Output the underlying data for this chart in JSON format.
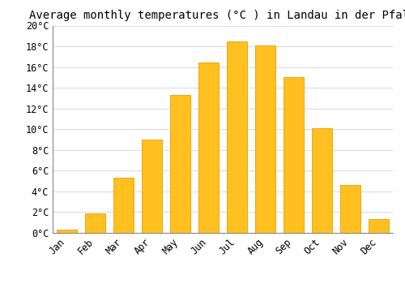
{
  "title": "Average monthly temperatures (°C ) in Landau in der Pfalz",
  "months": [
    "Jan",
    "Feb",
    "Mar",
    "Apr",
    "May",
    "Jun",
    "Jul",
    "Aug",
    "Sep",
    "Oct",
    "Nov",
    "Dec"
  ],
  "temperatures": [
    0.3,
    1.9,
    5.3,
    9.0,
    13.3,
    16.4,
    18.5,
    18.1,
    15.0,
    10.1,
    4.6,
    1.3
  ],
  "bar_color": "#FFC020",
  "bar_edge_color": "#E8A000",
  "background_color": "#ffffff",
  "grid_color": "#dddddd",
  "ylim": [
    0,
    20
  ],
  "ytick_step": 2,
  "title_fontsize": 10,
  "tick_fontsize": 8.5,
  "font_family": "monospace"
}
